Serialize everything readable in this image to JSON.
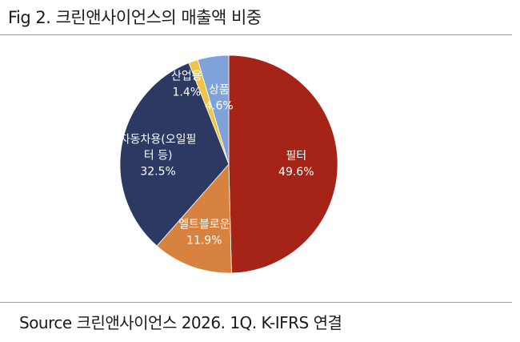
{
  "title": "Fig 2. 크린앤사이언스의 매출액 비중",
  "source": "Source 크린앤사이언스 2026. 1Q. K-IFRS 연결",
  "chart_data": {
    "type": "pie",
    "title": "",
    "start_angle_deg": 0,
    "direction": "clockwise",
    "slices": [
      {
        "label": "필터",
        "value": 49.6,
        "value_label": "49.6%",
        "color": "#a52317"
      },
      {
        "label": "멜트블로운",
        "value": 11.9,
        "value_label": "11.9%",
        "color": "#d8823f"
      },
      {
        "label_lines": [
          "자동차용(오일필",
          "터 등)"
        ],
        "value": 32.5,
        "value_label": "32.5%",
        "color": "#2c3a63"
      },
      {
        "label": "산업용",
        "value": 1.4,
        "value_label": "1.4%",
        "color": "#f0c545"
      },
      {
        "label": "상품",
        "value": 4.6,
        "value_label": "4.6%",
        "color": "#7fa3d8"
      }
    ]
  }
}
